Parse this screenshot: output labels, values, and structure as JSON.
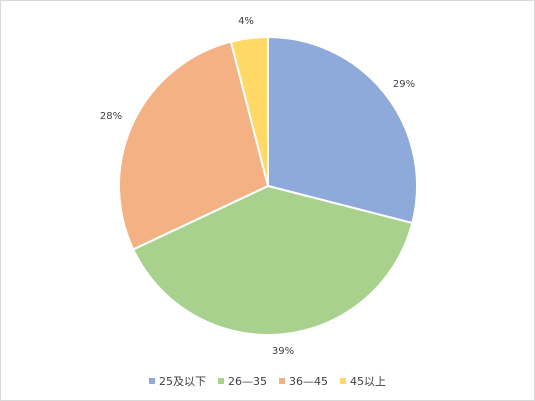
{
  "chart_data": {
    "type": "pie",
    "title": "",
    "legend_position": "bottom",
    "categories": [
      "25及以下",
      "26—35",
      "36—45",
      "45以上"
    ],
    "values": [
      29,
      39,
      28,
      4
    ],
    "data_labels": [
      "29%",
      "39%",
      "28%",
      "4%"
    ],
    "colors": [
      "#8EAADB",
      "#A9D18E",
      "#F4B183",
      "#FFD966"
    ]
  }
}
